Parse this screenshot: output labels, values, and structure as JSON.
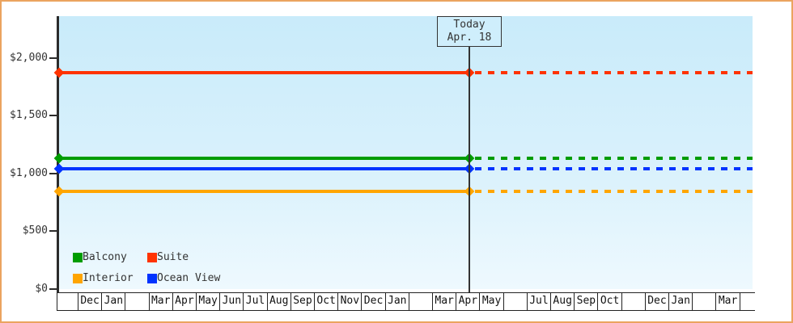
{
  "chart_data": {
    "type": "line",
    "title": "",
    "today_annotation": {
      "line1": "Today",
      "line2": "Apr. 18"
    },
    "y_axis": {
      "currency": "$",
      "ylim": [
        0,
        2360
      ],
      "ticks": [
        {
          "value": 0,
          "label": "$0"
        },
        {
          "value": 500,
          "label": "$500"
        },
        {
          "value": 1000,
          "label": "$1,000"
        },
        {
          "value": 1500,
          "label": "$1,500"
        },
        {
          "value": 2000,
          "label": "$2,000"
        }
      ]
    },
    "x_axis": {
      "month_labels": [
        "",
        "Dec",
        "Jan",
        "",
        "Mar",
        "Apr",
        "May",
        "Jun",
        "Jul",
        "Aug",
        "Sep",
        "Oct",
        "Nov",
        "Dec",
        "Jan",
        "",
        "Mar",
        "Apr",
        "May",
        "",
        "Jul",
        "Aug",
        "Sep",
        "Oct",
        "",
        "Dec",
        "Jan",
        "",
        "Mar",
        ""
      ],
      "today_month_index": 17
    },
    "series": [
      {
        "name": "Balcony",
        "value": 1130,
        "color": "#009c00"
      },
      {
        "name": "Suite",
        "value": 1875,
        "color": "#ff3300"
      },
      {
        "name": "Interior",
        "value": 845,
        "color": "#ffa500"
      },
      {
        "name": "Ocean View",
        "value": 1040,
        "color": "#0033ff"
      }
    ],
    "layout_hints": {
      "grid": "off",
      "legend_position": "bottom-left",
      "solid_segment": "start-to-today",
      "dashed_segment": "today-to-end",
      "markers_at": [
        "start",
        "today"
      ]
    },
    "legend": {
      "entries": [
        "Balcony",
        "Suite",
        "Interior",
        "Ocean View"
      ]
    }
  },
  "colors": {
    "page_border": "#eba45f",
    "plot_bg_top": "#c9ebfa",
    "plot_bg_bottom": "#eef9fe",
    "axis": "#2b2b2b",
    "today_line": "#333333",
    "today_box_bg": "#cfeefc"
  }
}
